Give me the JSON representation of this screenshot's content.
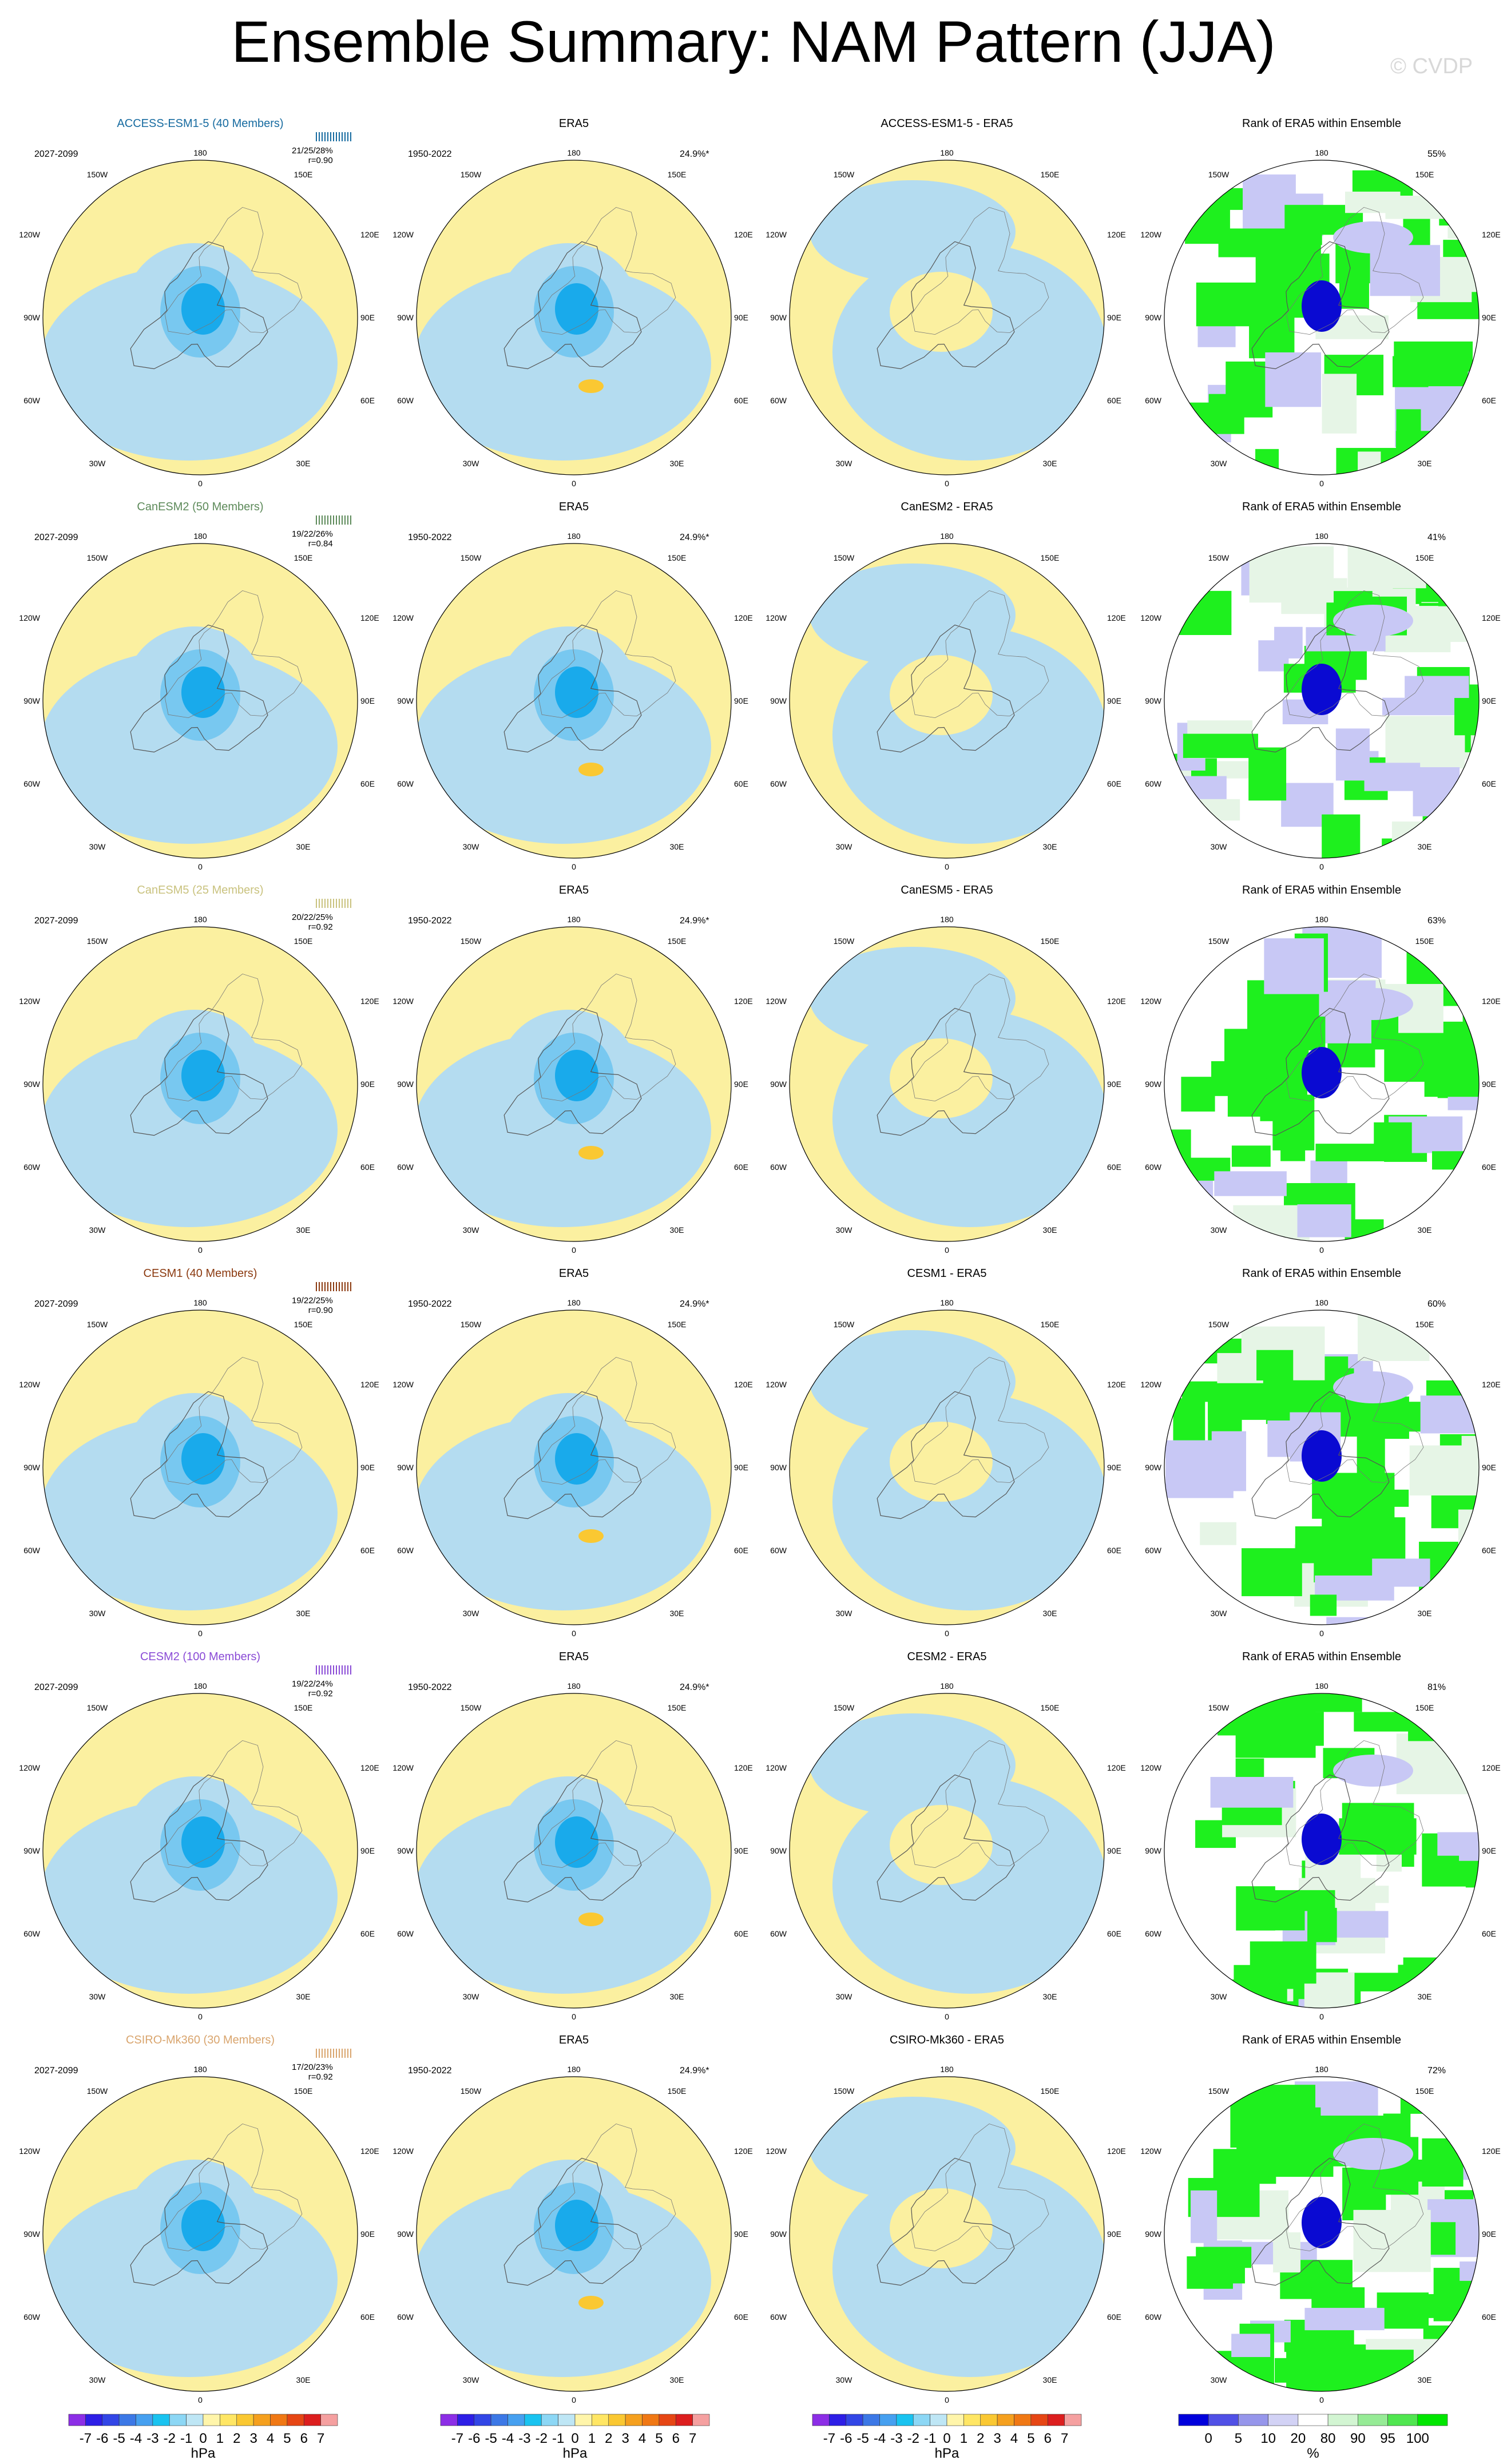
{
  "title": "Ensemble Summary: NAM Pattern (JJA)",
  "watermark": "© CVDP",
  "obs_years": "1950-2022",
  "model_years": "2027-2099",
  "obs_pct": "24.9%*",
  "rank_title": "Rank of ERA5 within Ensemble",
  "obs_title": "ERA5",
  "lon_labels": [
    "180",
    "150W",
    "150E",
    "120W",
    "120E",
    "90W",
    "90E",
    "60W",
    "60E",
    "30W",
    "30E",
    "0"
  ],
  "colors": {
    "pos_light": "#fbf0a0",
    "neg_light": "#b4dcf0",
    "neg_mid": "#78c8f0",
    "neg_strong": "#19aaeb",
    "rank_green": "#1ef01e",
    "rank_blue": "#0a0ad2",
    "rank_lightblue": "#c8c8f5"
  },
  "rows": [
    {
      "model": "ACCESS-ESM1-5 (40 Members)",
      "model_color": "#176ba0",
      "stats": "21/25/28%",
      "r": "r=0.90",
      "diff_title": "ACCESS-ESM1-5 - ERA5",
      "rank_pct": "55%"
    },
    {
      "model": "CanESM2 (50 Members)",
      "model_color": "#5d8a5a",
      "stats": "19/22/26%",
      "r": "r=0.84",
      "diff_title": "CanESM2 - ERA5",
      "rank_pct": "41%"
    },
    {
      "model": "CanESM5 (25 Members)",
      "model_color": "#c9c27e",
      "stats": "20/22/25%",
      "r": "r=0.92",
      "diff_title": "CanESM5 - ERA5",
      "rank_pct": "63%"
    },
    {
      "model": "CESM1 (40 Members)",
      "model_color": "#8b3a10",
      "stats": "19/22/25%",
      "r": "r=0.90",
      "diff_title": "CESM1 - ERA5",
      "rank_pct": "60%"
    },
    {
      "model": "CESM2 (100 Members)",
      "model_color": "#8a4bd6",
      "stats": "19/22/24%",
      "r": "r=0.92",
      "diff_title": "CESM2 - ERA5",
      "rank_pct": "81%"
    },
    {
      "model": "CSIRO-Mk360 (30 Members)",
      "model_color": "#d9a56e",
      "stats": "17/20/23%",
      "r": "r=0.92",
      "diff_title": "CSIRO-Mk360 - ERA5",
      "rank_pct": "72%"
    }
  ],
  "colorbar_hpa": {
    "labels": [
      "-7",
      "-6",
      "-5",
      "-4",
      "-3",
      "-2",
      "-1",
      "0",
      "1",
      "2",
      "3",
      "4",
      "5",
      "6",
      "7"
    ],
    "colors": [
      "#8c2ee6",
      "#2d1ee6",
      "#3246e6",
      "#3c78e6",
      "#46a0f0",
      "#19c3f0",
      "#8cd7f5",
      "#bee6f5",
      "#fff5aa",
      "#ffe664",
      "#fac832",
      "#f5a01e",
      "#f07814",
      "#e64614",
      "#dc1e1e",
      "#f5a0a0"
    ],
    "unit": "hPa"
  },
  "colorbar_rank": {
    "labels": [
      "0",
      "5",
      "10",
      "20",
      "80",
      "90",
      "95",
      "100"
    ],
    "colors": [
      "#0000dc",
      "#5050e6",
      "#9696eb",
      "#d2d2f5",
      "#ffffff",
      "#d2f5d2",
      "#96eb96",
      "#50e650",
      "#00e600"
    ],
    "unit": "%"
  }
}
